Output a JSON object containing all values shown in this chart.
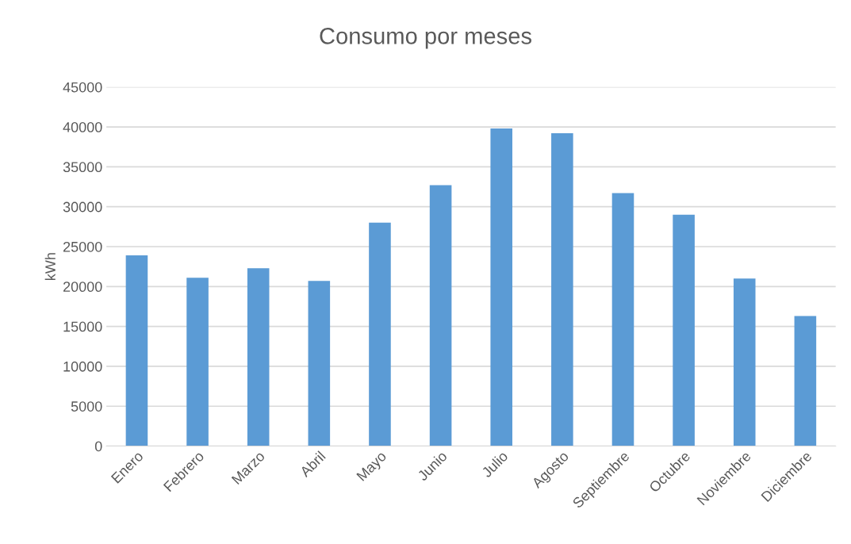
{
  "chart_data": {
    "type": "bar",
    "title": "Consumo por meses",
    "ylabel": "kWh",
    "categories": [
      "Enero",
      "Febrero",
      "Marzo",
      "Abril",
      "Mayo",
      "Junio",
      "Julio",
      "Agosto",
      "Septiembre",
      "Octubre",
      "Noviembre",
      "Diciembre"
    ],
    "values": [
      23900,
      21100,
      22300,
      20700,
      28000,
      32700,
      39800,
      39200,
      31700,
      29000,
      21000,
      16300
    ],
    "color": "#5b9bd5",
    "ylim": [
      0,
      45000
    ],
    "yticks": [
      0,
      5000,
      10000,
      15000,
      20000,
      25000,
      30000,
      35000,
      40000,
      45000
    ],
    "grid": "y"
  }
}
